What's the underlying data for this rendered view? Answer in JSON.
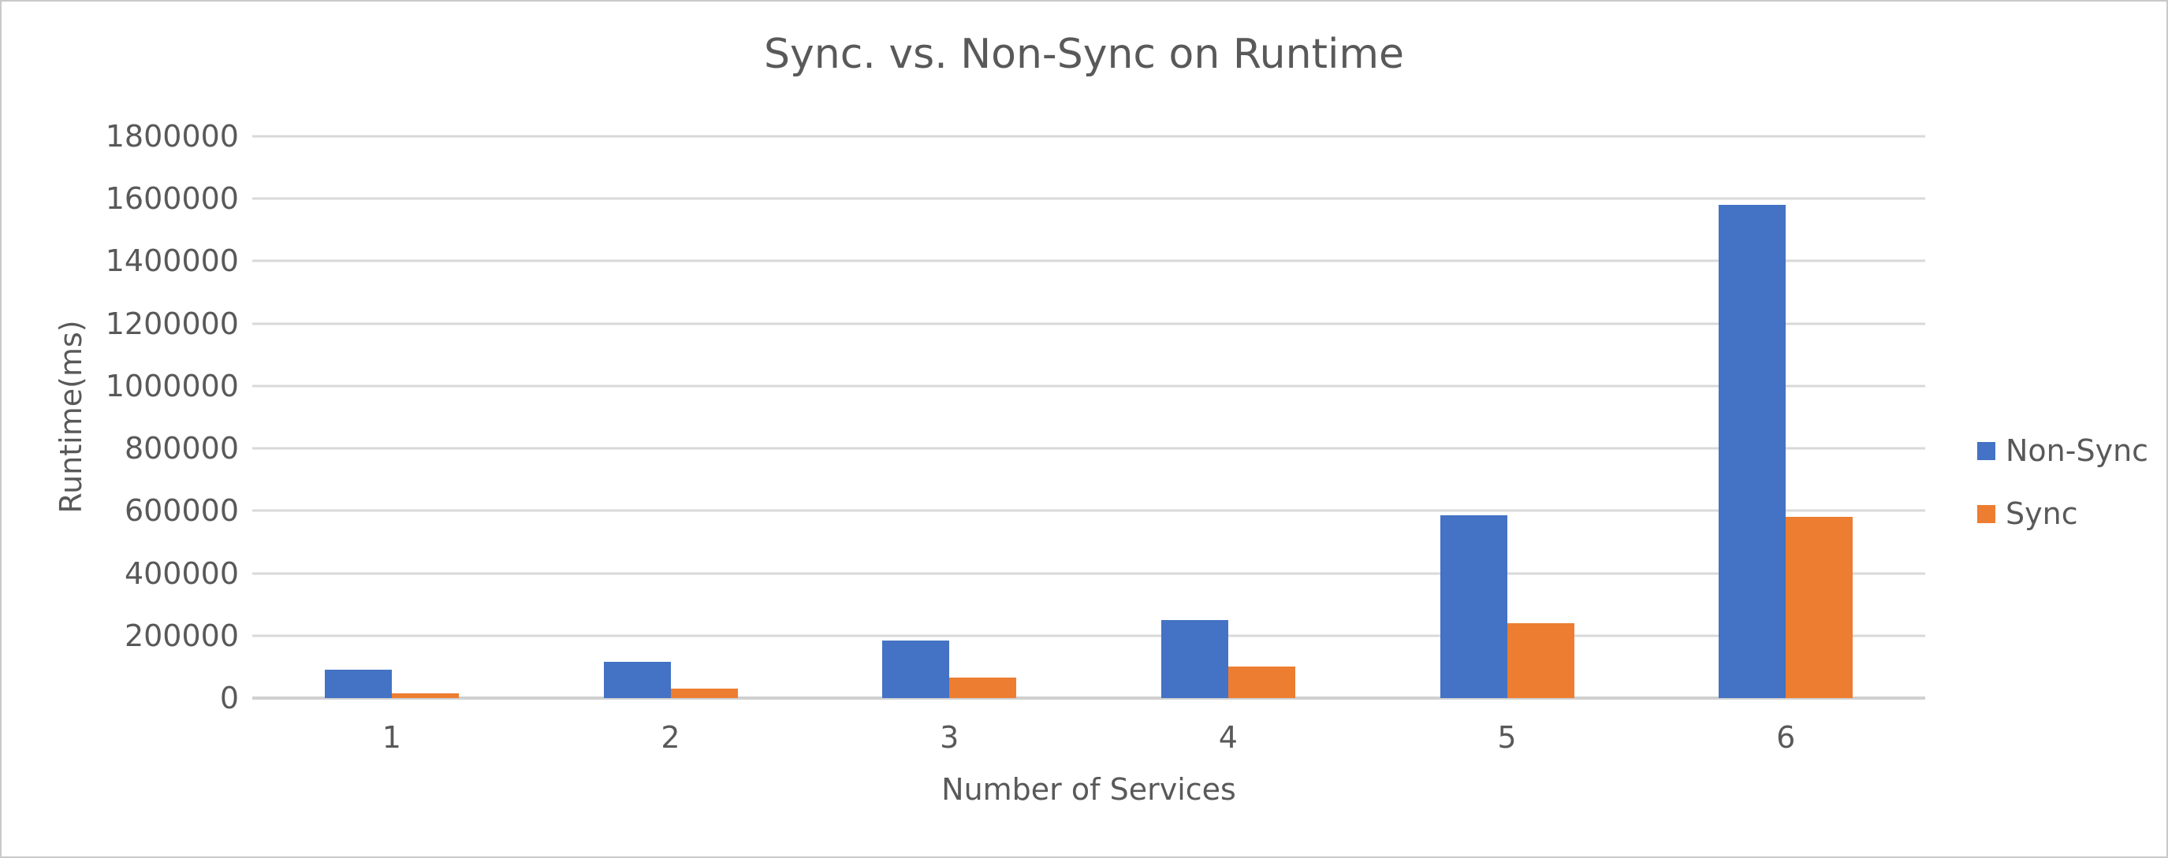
{
  "chart_data": {
    "type": "bar",
    "title": "Sync. vs. Non-Sync on Runtime",
    "xlabel": "Number of Services",
    "ylabel": "Runtime(ms)",
    "categories": [
      "1",
      "2",
      "3",
      "4",
      "5",
      "6"
    ],
    "series": [
      {
        "name": "Non-Sync",
        "color": "#4472C4",
        "values": [
          90000,
          115000,
          185000,
          250000,
          585000,
          1580000
        ]
      },
      {
        "name": "Sync",
        "color": "#ED7D31",
        "values": [
          15000,
          30000,
          65000,
          100000,
          240000,
          580000
        ]
      }
    ],
    "ylim": [
      0,
      1800000
    ],
    "ytick_step": 200000,
    "ytick_labels": [
      "0",
      "200000",
      "400000",
      "600000",
      "800000",
      "1000000",
      "1200000",
      "1400000",
      "1600000",
      "1800000"
    ],
    "grid": true,
    "legend_position": "right",
    "legend_entries": [
      "Non-Sync",
      "Sync"
    ]
  },
  "colors": {
    "text": "#595959",
    "gridline": "#D9D9D9",
    "axis_line": "#D0D0D0",
    "background": "#FFFFFF",
    "frame_border": "#C9C9C9",
    "series_non_sync": "#4472C4",
    "series_sync": "#ED7D31"
  }
}
